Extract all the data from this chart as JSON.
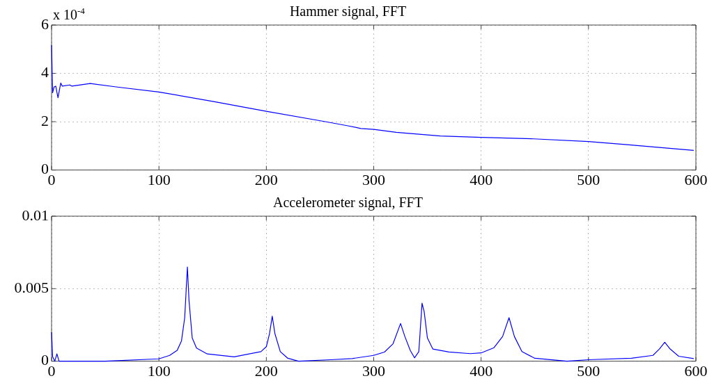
{
  "chart_data": [
    {
      "type": "line",
      "title": "Hammer signal, FFT",
      "x": [
        0,
        1,
        2.4,
        3.9,
        6,
        7.8,
        8.6,
        10,
        17,
        19,
        36,
        60,
        100,
        151,
        200,
        254,
        276,
        288,
        300,
        321,
        362,
        400,
        449,
        500,
        536,
        598
      ],
      "series": [
        {
          "color": "#0000ff",
          "values": [
            5.17,
            3.2,
            3.44,
            3.47,
            2.99,
            3.42,
            3.6,
            3.47,
            3.52,
            3.47,
            3.58,
            3.44,
            3.23,
            2.83,
            2.43,
            2.01,
            1.83,
            1.72,
            1.68,
            1.56,
            1.41,
            1.35,
            1.29,
            1.18,
            1.05,
            0.81
          ]
        }
      ],
      "xlim": [
        0,
        600
      ],
      "xticks": [
        0,
        100,
        200,
        300,
        400,
        500,
        600
      ],
      "ylim": [
        0,
        6
      ],
      "yticks": [
        0,
        2,
        4,
        6
      ],
      "annotations": [
        "x 10$^{-4}$"
      ],
      "grid": true,
      "legend": false,
      "marker": "none",
      "line_style": "solid"
    },
    {
      "type": "line",
      "title": "Accelerometer signal, FFT",
      "x": [
        0,
        1,
        3,
        5,
        7,
        10,
        50,
        100,
        110,
        117,
        121,
        124,
        126.5,
        128,
        131,
        135,
        145,
        170,
        195,
        200,
        203,
        205.5,
        208,
        213,
        220,
        230,
        260,
        280,
        300,
        310,
        318,
        325,
        329,
        334,
        338,
        342,
        345,
        347,
        350,
        355,
        370,
        390,
        400,
        412,
        420,
        426,
        431,
        438,
        450,
        480,
        500,
        540,
        560,
        566,
        571,
        576,
        584,
        598
      ],
      "series": [
        {
          "color": "#0000ff",
          "values": [
            0.002,
            0.0003,
            0,
            0.0005,
            0,
            0,
            0,
            0.00016,
            0.0004,
            0.00075,
            0.0014,
            0.003,
            0.0065,
            0.0042,
            0.0016,
            0.0009,
            0.0005,
            0.0003,
            0.00066,
            0.001,
            0.0019,
            0.0031,
            0.0019,
            0.00066,
            0.0002,
            0,
            0.0001,
            0.00018,
            0.0004,
            0.00063,
            0.0012,
            0.0026,
            0.0017,
            0.00075,
            0.00023,
            0.00066,
            0.004,
            0.0034,
            0.0016,
            0.00084,
            0.00063,
            0.00052,
            0.00057,
            0.00093,
            0.0017,
            0.003,
            0.0017,
            0.00066,
            0.0002,
            0,
            0.0001,
            0.0002,
            0.0004,
            0.00084,
            0.0013,
            0.00084,
            0.00034,
            0.00018
          ]
        }
      ],
      "xlim": [
        0,
        600
      ],
      "xticks": [
        0,
        100,
        200,
        300,
        400,
        500,
        600
      ],
      "ylim": [
        0,
        0.01
      ],
      "yticks": [
        0,
        0.005,
        0.01
      ],
      "grid": true,
      "legend": false,
      "marker": "none",
      "line_style": "solid"
    }
  ]
}
